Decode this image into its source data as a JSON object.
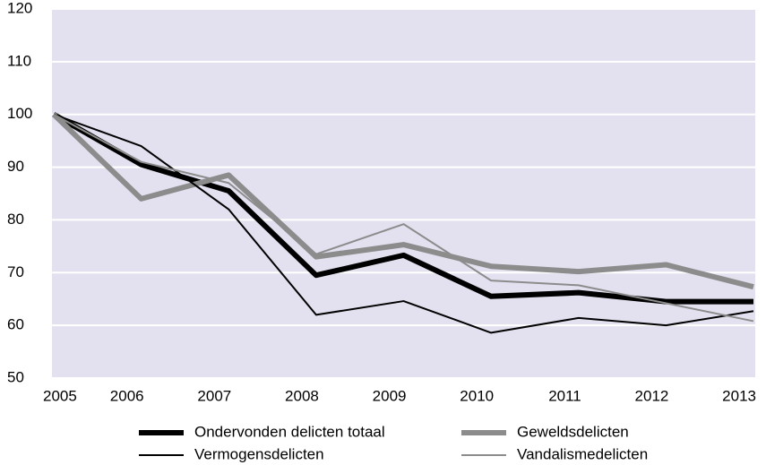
{
  "chart_data": {
    "type": "line",
    "x": [
      2005,
      2006,
      2007,
      2008,
      2009,
      2010,
      2011,
      2012,
      2013
    ],
    "xlim": [
      2005,
      2013
    ],
    "xticks": [
      2005,
      2006,
      2007,
      2008,
      2009,
      2010,
      2011,
      2012,
      2013
    ],
    "ylim": [
      50,
      120
    ],
    "yticks": [
      50,
      60,
      70,
      80,
      90,
      100,
      110,
      120
    ],
    "grid": true,
    "legend": "bottom",
    "series": [
      {
        "name": "Ondervonden delicten totaal",
        "color": "#000000",
        "line_width": 6,
        "values": [
          100,
          90.5,
          85.5,
          69.5,
          73.3,
          65.5,
          66.2,
          64.5,
          64.5
        ]
      },
      {
        "name": "Geweldsdelicten",
        "color": "#8c8c8c",
        "line_width": 6,
        "values": [
          100,
          84,
          88.5,
          73,
          75.3,
          71.2,
          70.2,
          71.5,
          67.3
        ]
      },
      {
        "name": "Vermogensdelicten",
        "color": "#000000",
        "line_width": 2,
        "values": [
          100,
          94,
          82,
          62,
          64.6,
          58.6,
          61.4,
          60,
          62.7
        ]
      },
      {
        "name": "Vandalismedelicten",
        "color": "#8c8c8c",
        "line_width": 2,
        "values": [
          100,
          91,
          87,
          73.5,
          79.2,
          68.5,
          67.6,
          64.2,
          60.8
        ]
      }
    ]
  }
}
